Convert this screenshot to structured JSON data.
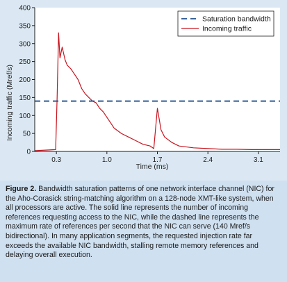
{
  "chart_data": {
    "type": "line",
    "xlabel": "Time (ms)",
    "ylabel": "Incoming traffic (Mref/s)",
    "xlim": [
      0,
      3.4
    ],
    "ylim": [
      0,
      400
    ],
    "xticks": [
      "0.3",
      "1.0",
      "1.7",
      "2.4",
      "3.1"
    ],
    "yticks": [
      "0",
      "50",
      "100",
      "150",
      "200",
      "250",
      "300",
      "350",
      "400"
    ],
    "legend_position": "top-right",
    "grid": false,
    "series": [
      {
        "name": "Saturation bandwidth",
        "style": "dashed",
        "color": "#1f4e8c",
        "value": 140
      },
      {
        "name": "Incoming traffic",
        "style": "solid",
        "color": "#c8141e",
        "points": [
          [
            0.0,
            2
          ],
          [
            0.1,
            3
          ],
          [
            0.2,
            4
          ],
          [
            0.29,
            5
          ],
          [
            0.31,
            150
          ],
          [
            0.33,
            330
          ],
          [
            0.35,
            260
          ],
          [
            0.38,
            290
          ],
          [
            0.42,
            255
          ],
          [
            0.45,
            240
          ],
          [
            0.5,
            230
          ],
          [
            0.55,
            215
          ],
          [
            0.6,
            200
          ],
          [
            0.65,
            175
          ],
          [
            0.7,
            160
          ],
          [
            0.75,
            150
          ],
          [
            0.8,
            140
          ],
          [
            0.85,
            135
          ],
          [
            0.9,
            120
          ],
          [
            0.95,
            110
          ],
          [
            1.0,
            95
          ],
          [
            1.05,
            80
          ],
          [
            1.1,
            65
          ],
          [
            1.2,
            50
          ],
          [
            1.3,
            40
          ],
          [
            1.4,
            30
          ],
          [
            1.5,
            20
          ],
          [
            1.6,
            15
          ],
          [
            1.65,
            8
          ],
          [
            1.7,
            120
          ],
          [
            1.75,
            60
          ],
          [
            1.8,
            40
          ],
          [
            1.9,
            25
          ],
          [
            2.0,
            15
          ],
          [
            2.2,
            10
          ],
          [
            2.4,
            8
          ],
          [
            2.6,
            6
          ],
          [
            2.8,
            6
          ],
          [
            3.0,
            5
          ],
          [
            3.2,
            5
          ],
          [
            3.4,
            5
          ]
        ]
      }
    ]
  },
  "caption": {
    "label": "Figure 2.",
    "text": " Bandwidth saturation patterns of one network interface channel (NIC) for the Aho-Corasick string-matching algorithm on a 128-node XMT-like system, when all processors are active. The solid line represents the number of incoming references requesting access to the NIC, while the dashed line represents the maximum rate of references per second that the NIC can serve (140 Mref/s bidirectional). In many application segments, the requested injection rate far exceeds the available NIC bandwidth, stalling remote memory references and delaying overall execution."
  }
}
